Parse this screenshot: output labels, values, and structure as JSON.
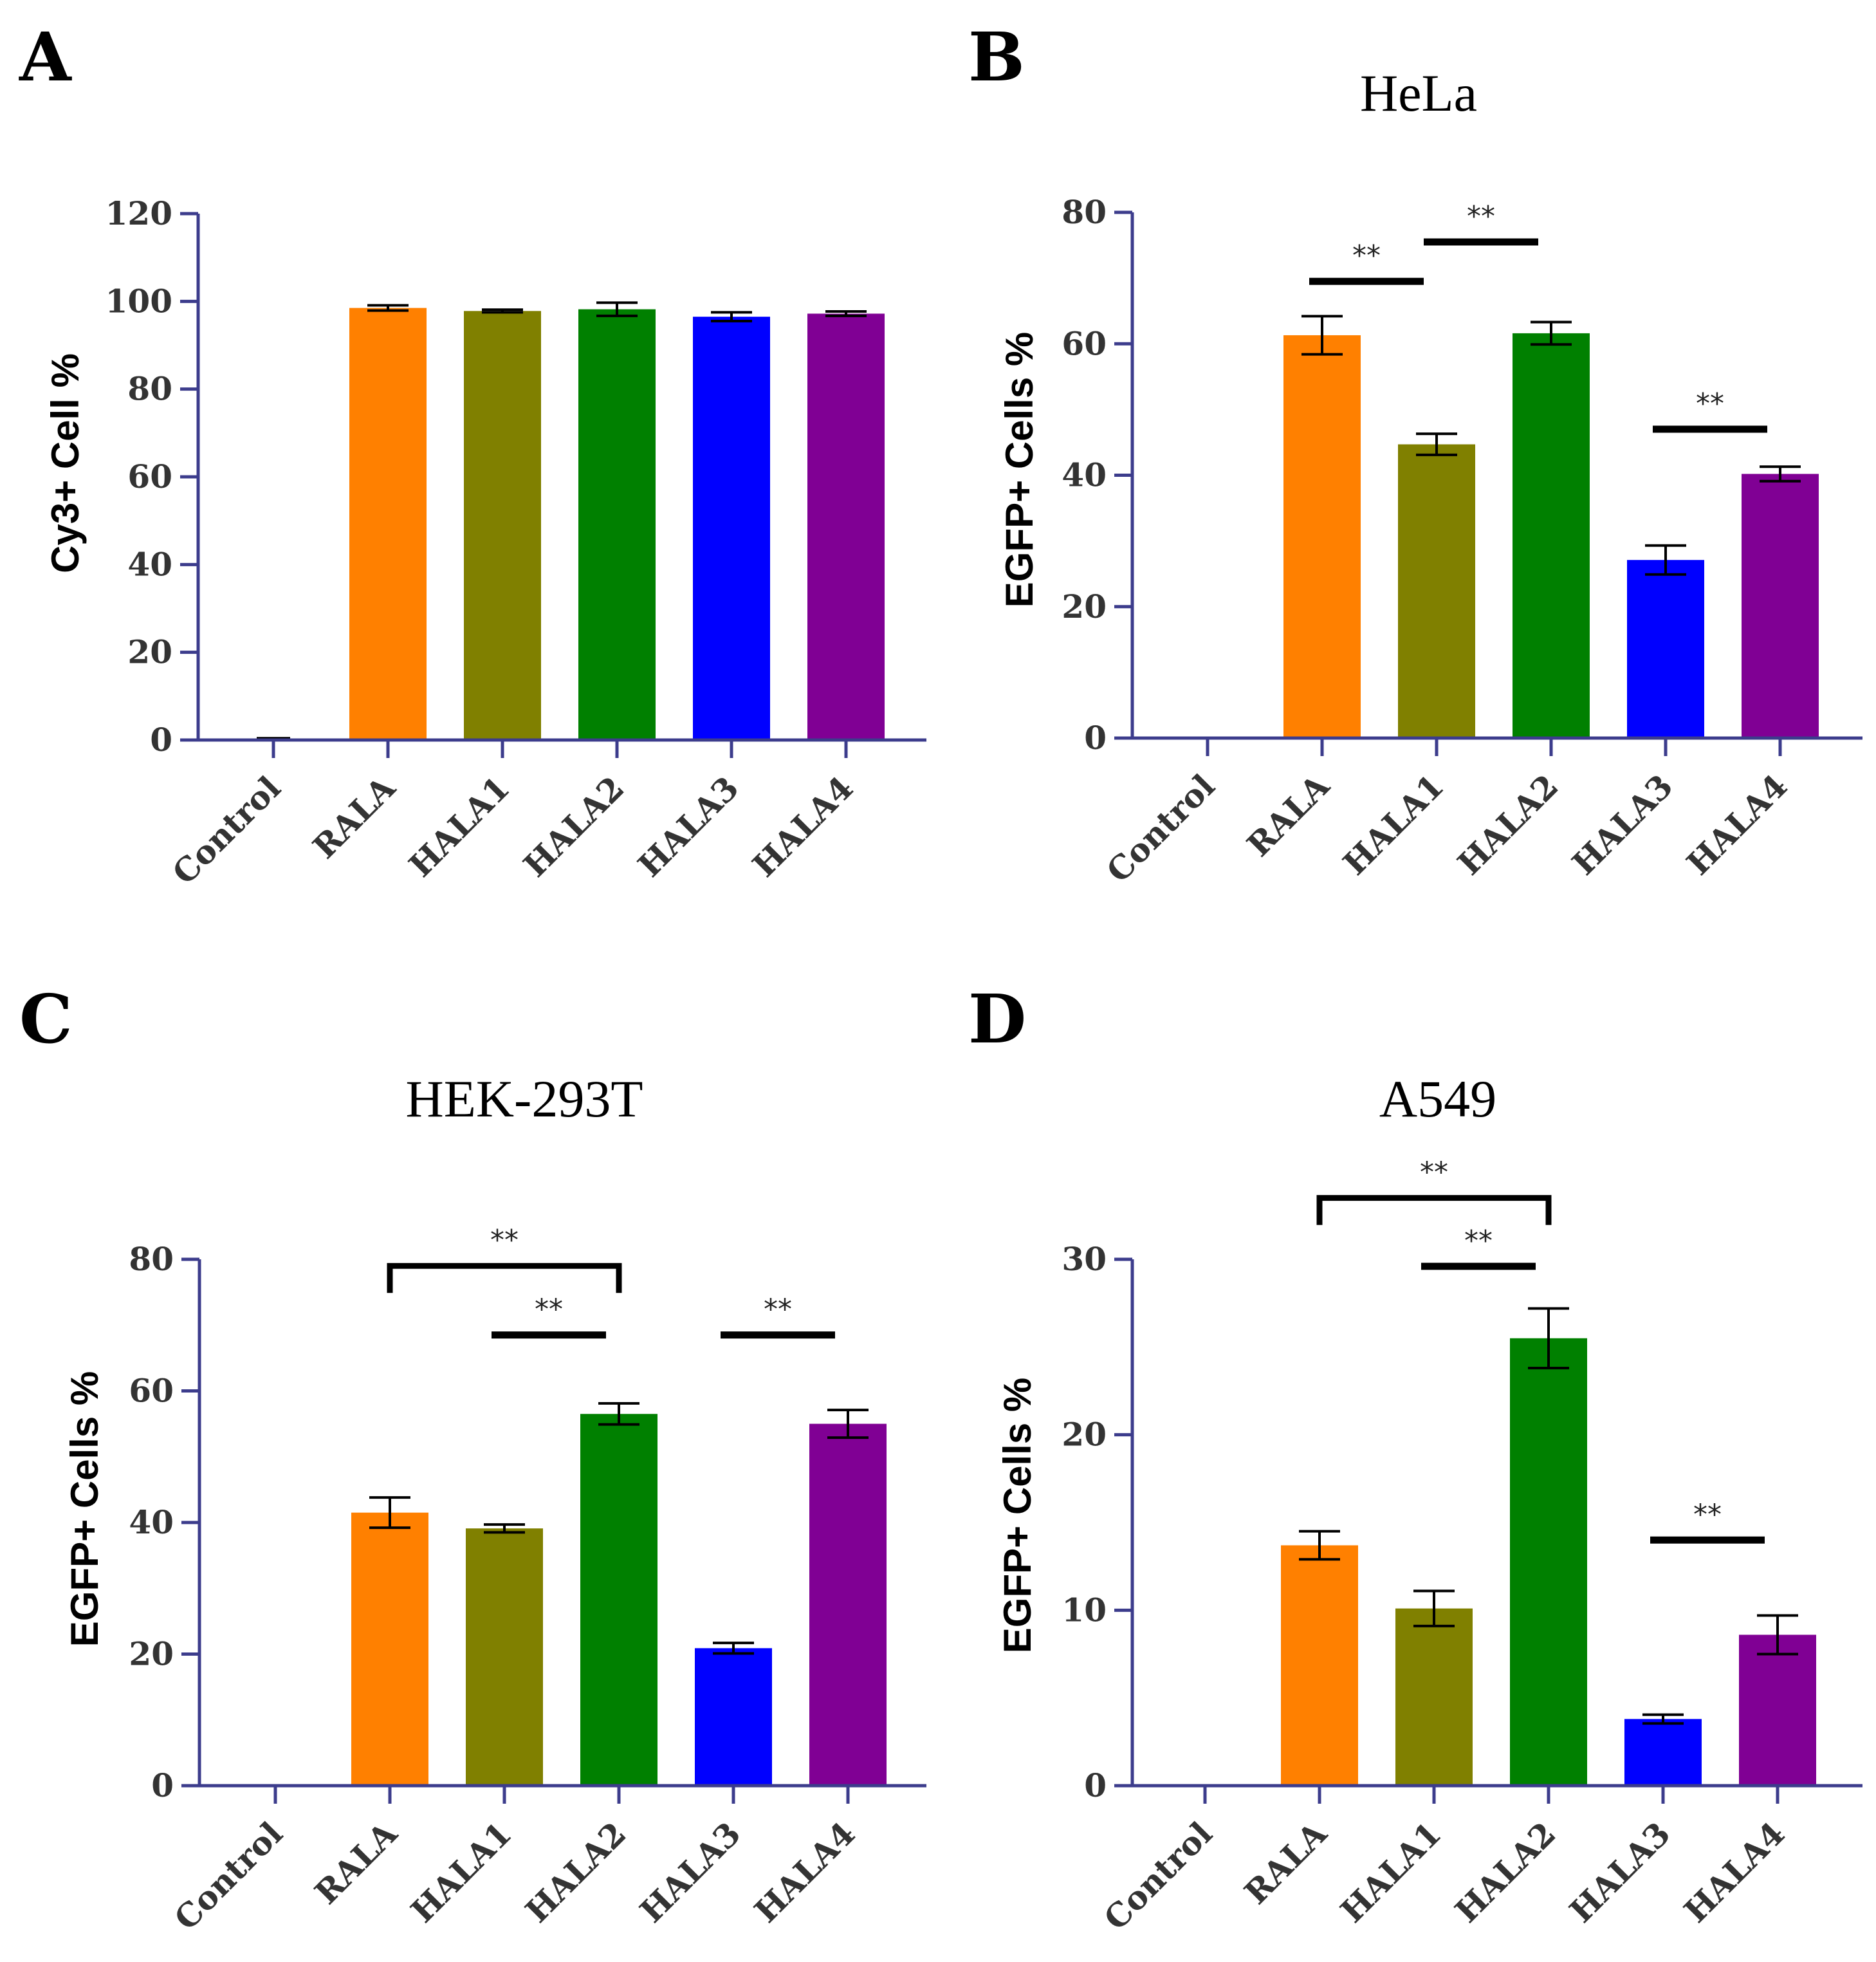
{
  "colors": {
    "axis": "#3c3c8c",
    "bar_colors": [
      "#ff8000",
      "#808000",
      "#008000",
      "#0000ff",
      "#800094"
    ],
    "errorbar": "#000000",
    "significance": "#000000"
  },
  "chart_data": [
    {
      "panel": "A",
      "type": "bar",
      "title": "",
      "ylabel": "Cy3+ Cell %",
      "xlabel": "",
      "ylim": [
        0,
        120
      ],
      "yticks": [
        "0",
        "20",
        "40",
        "60",
        "80",
        "100",
        "120"
      ],
      "categories": [
        "Control",
        "RALA",
        "HALA1",
        "HALA2",
        "HALA3",
        "HALA4"
      ],
      "values": [
        0.3,
        98.5,
        97.8,
        98.2,
        96.5,
        97.2
      ],
      "errors": [
        0.1,
        0.6,
        0.3,
        1.5,
        1.0,
        0.5
      ],
      "significance": []
    },
    {
      "panel": "B",
      "type": "bar",
      "title": "HeLa",
      "ylabel": "EGFP+ Cells %",
      "xlabel": "",
      "ylim": [
        0,
        80
      ],
      "yticks": [
        "0",
        "20",
        "40",
        "60",
        "80"
      ],
      "categories": [
        "Control",
        "RALA",
        "HALA1",
        "HALA2",
        "HALA3",
        "HALA4"
      ],
      "values": [
        0,
        61.3,
        44.7,
        61.6,
        27.1,
        40.2
      ],
      "errors": [
        0,
        2.9,
        1.6,
        1.7,
        2.2,
        1.1
      ],
      "significance": [
        {
          "from": 1,
          "to": 2,
          "y": 69.5,
          "style": "line",
          "label": "**"
        },
        {
          "from": 2,
          "to": 3,
          "y": 75.5,
          "style": "line",
          "label": "**"
        },
        {
          "from": 4,
          "to": 5,
          "y": 47,
          "style": "line",
          "label": "**"
        }
      ]
    },
    {
      "panel": "C",
      "type": "bar",
      "title": "HEK-293T",
      "ylabel": "EGFP+ Cells %",
      "xlabel": "",
      "ylim": [
        0,
        80
      ],
      "yticks": [
        "0",
        "20",
        "40",
        "60",
        "80"
      ],
      "categories": [
        "Control",
        "RALA",
        "HALA1",
        "HALA2",
        "HALA3",
        "HALA4"
      ],
      "values": [
        0,
        41.5,
        39.1,
        56.5,
        20.9,
        55.0
      ],
      "errors": [
        0,
        2.3,
        0.6,
        1.6,
        0.8,
        2.1
      ],
      "significance": [
        {
          "from": 1,
          "to": 3,
          "y": 79,
          "style": "bracket",
          "label": "**"
        },
        {
          "from": 2,
          "to": 3,
          "y": 68.5,
          "style": "line",
          "label": "**"
        },
        {
          "from": 4,
          "to": 5,
          "y": 68.5,
          "style": "line",
          "label": "**"
        }
      ]
    },
    {
      "panel": "D",
      "type": "bar",
      "title": "A549",
      "ylabel": "EGFP+ Cells %",
      "xlabel": "",
      "ylim": [
        0,
        30
      ],
      "yticks": [
        "0",
        "10",
        "20",
        "30"
      ],
      "categories": [
        "Control",
        "RALA",
        "HALA1",
        "HALA2",
        "HALA3",
        "HALA4"
      ],
      "values": [
        0,
        13.7,
        10.1,
        25.5,
        3.8,
        8.6
      ],
      "errors": [
        0,
        0.8,
        1.0,
        1.7,
        0.25,
        1.1
      ],
      "significance": [
        {
          "from": 1,
          "to": 3,
          "y": 33.5,
          "style": "bracket",
          "label": "**"
        },
        {
          "from": 2,
          "to": 3,
          "y": 29.6,
          "style": "line",
          "label": "**"
        },
        {
          "from": 4,
          "to": 5,
          "y": 14,
          "style": "line",
          "label": "**"
        }
      ]
    }
  ]
}
